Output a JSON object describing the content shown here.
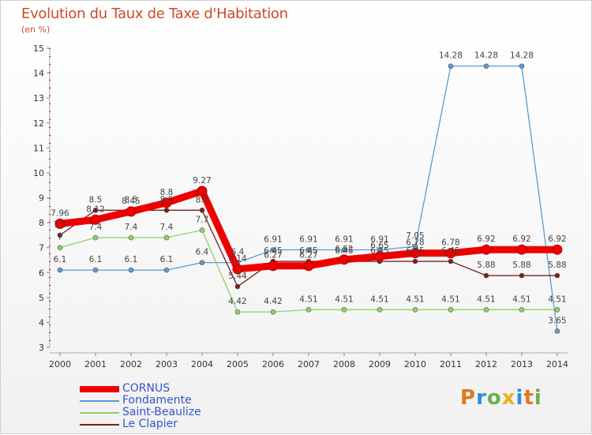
{
  "title": "Evolution du Taux de Taxe d'Habitation",
  "unit": "(en %)",
  "logo": {
    "text": "Proxiti",
    "letter_colors": [
      "#e07a1a",
      "#2b8fd6",
      "#6ab04c",
      "#e8b020",
      "#2b8fd6",
      "#e07a1a",
      "#6ab04c"
    ]
  },
  "chart_data": {
    "type": "line",
    "title": "Evolution du Taux de Taxe d'Habitation",
    "ylabel": "(en %)",
    "xlabel": "",
    "x": [
      "2000",
      "2001",
      "2002",
      "2003",
      "2004",
      "2005",
      "2006",
      "2007",
      "2008",
      "2009",
      "2010",
      "2011",
      "2012",
      "2013",
      "2014"
    ],
    "ylim": [
      3,
      15
    ],
    "yticks": [
      "3",
      "4",
      "5",
      "6",
      "7",
      "8",
      "9",
      "10",
      "11",
      "12",
      "13",
      "14",
      "15"
    ],
    "grid": false,
    "legend": "bottom-left",
    "series": [
      {
        "name": "CORNUS",
        "color": "#ee0000",
        "values": [
          7.96,
          8.12,
          8.45,
          8.8,
          9.27,
          6.14,
          6.27,
          6.27,
          6.52,
          6.65,
          6.78,
          6.78,
          6.92,
          6.92,
          6.92
        ],
        "labels": [
          "7.96",
          "8.12",
          "8.45",
          "8.8",
          "9.27",
          "6.14",
          "6.27",
          "6.27",
          "6.52",
          "6.65",
          "6.78",
          "6.78",
          "6.92",
          "6.92",
          "6.92"
        ]
      },
      {
        "name": "Fondamente",
        "color": "#5b9bd5",
        "values": [
          6.1,
          6.1,
          6.1,
          6.1,
          6.4,
          6.4,
          6.91,
          6.91,
          6.91,
          6.91,
          7.05,
          14.28,
          14.28,
          14.28,
          3.65
        ],
        "labels": [
          "6.1",
          "6.1",
          "6.1",
          "6.1",
          "6.4",
          "6.4",
          "6.91",
          "6.91",
          "6.91",
          "6.91",
          "7.05",
          "14.28",
          "14.28",
          "14.28",
          "3.65"
        ]
      },
      {
        "name": "Saint-Beaulize",
        "color": "#8fd16a",
        "values": [
          7,
          7.4,
          7.4,
          7.4,
          7.7,
          4.42,
          4.42,
          4.51,
          4.51,
          4.51,
          4.51,
          4.51,
          4.51,
          4.51,
          4.51
        ],
        "labels": [
          "7",
          "7.4",
          "7.4",
          "7.4",
          "7.7",
          "4.42",
          "4.42",
          "4.51",
          "4.51",
          "4.51",
          "4.51",
          "4.51",
          "4.51",
          "4.51",
          "4.51"
        ]
      },
      {
        "name": "Le Clapier",
        "color": "#7a2020",
        "values": [
          7.5,
          8.5,
          8.5,
          8.5,
          8.5,
          5.44,
          6.45,
          6.45,
          6.45,
          6.45,
          6.45,
          6.45,
          5.88,
          5.88,
          5.88
        ],
        "labels": [
          "7.5",
          "8.5",
          "8.5",
          "8.5",
          "8.5",
          "5.44",
          "6.45",
          "6.45",
          "6.45",
          "6.45",
          "6.45",
          "6.45",
          "5.88",
          "5.88",
          "5.88"
        ]
      }
    ]
  }
}
